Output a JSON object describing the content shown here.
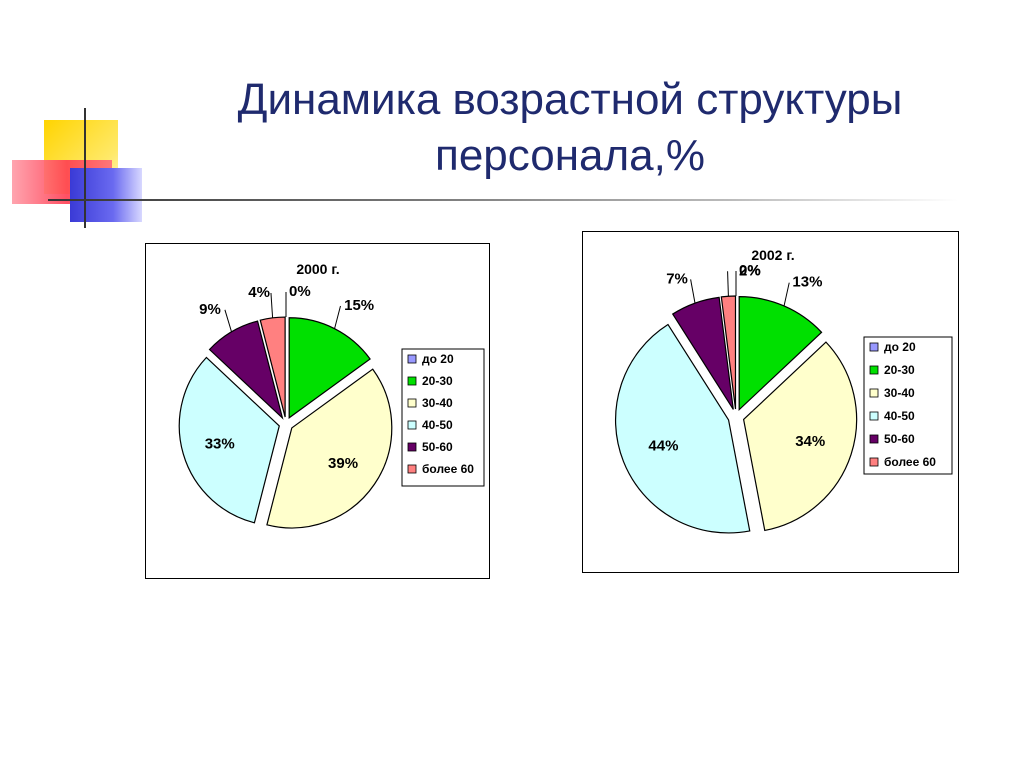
{
  "slide": {
    "title_line1": "Динамика возрастной структуры",
    "title_line2": "персонала,%"
  },
  "chart_data": [
    {
      "type": "pie",
      "title": "2000 г.",
      "categories": [
        "до 20",
        "20-30",
        "30-40",
        "40-50",
        "50-60",
        "более 60"
      ],
      "values": [
        0,
        15,
        39,
        33,
        9,
        4
      ],
      "labels": [
        "0%",
        "15%",
        "39%",
        "33%",
        "9%",
        "4%"
      ],
      "colors": [
        "#9999ff",
        "#00e000",
        "#ffffcc",
        "#ccffff",
        "#660066",
        "#ff8080"
      ],
      "legend_position": "right"
    },
    {
      "type": "pie",
      "title": "2002 г.",
      "categories": [
        "до 20",
        "20-30",
        "30-40",
        "40-50",
        "50-60",
        "более 60"
      ],
      "values": [
        0,
        13,
        34,
        44,
        7,
        2
      ],
      "labels": [
        "0%",
        "13%",
        "34%",
        "44%",
        "7%",
        "2%"
      ],
      "colors": [
        "#9999ff",
        "#00e000",
        "#ffffcc",
        "#ccffff",
        "#660066",
        "#ff8080"
      ],
      "legend_position": "right"
    }
  ]
}
